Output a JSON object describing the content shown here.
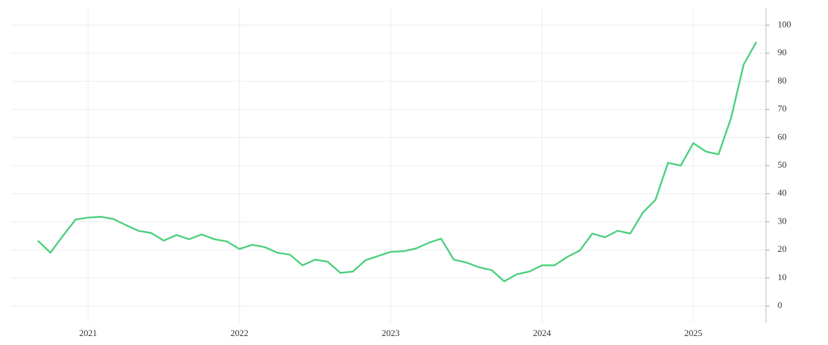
{
  "chart_data": {
    "type": "line",
    "x": [
      2020.667,
      2020.75,
      2020.833,
      2020.917,
      2021,
      2021.083,
      2021.167,
      2021.25,
      2021.333,
      2021.417,
      2021.5,
      2021.583,
      2021.667,
      2021.75,
      2021.833,
      2021.917,
      2022,
      2022.083,
      2022.167,
      2022.25,
      2022.333,
      2022.417,
      2022.5,
      2022.583,
      2022.667,
      2022.75,
      2022.833,
      2022.917,
      2023,
      2023.083,
      2023.167,
      2023.25,
      2023.333,
      2023.417,
      2023.5,
      2023.583,
      2023.667,
      2023.75,
      2023.833,
      2023.917,
      2024,
      2024.083,
      2024.167,
      2024.25,
      2024.333,
      2024.417,
      2024.5,
      2024.583,
      2024.667,
      2024.75,
      2024.833,
      2024.917,
      2025,
      2025.083,
      2025.167,
      2025.25,
      2025.333,
      2025.417
    ],
    "values": [
      23.3,
      19,
      25,
      30.8,
      31.5,
      31.8,
      31,
      28.8,
      26.8,
      26,
      23.3,
      25.3,
      23.8,
      25.5,
      23.8,
      23,
      20.3,
      21.8,
      21,
      19,
      18.3,
      14.5,
      16.5,
      15.8,
      11.8,
      12.3,
      16.3,
      17.8,
      19.3,
      19.5,
      20.5,
      22.5,
      24,
      16.5,
      15.5,
      13.8,
      12.8,
      8.8,
      11.3,
      12.3,
      14.5,
      14.5,
      17.5,
      19.8,
      25.8,
      24.5,
      26.8,
      25.8,
      33.3,
      37.8,
      51,
      50,
      58,
      55,
      54,
      67,
      86,
      94
    ],
    "color": "#4cd07d",
    "xlim": [
      2020.49,
      2025.48
    ],
    "xticks": [
      2021,
      2022,
      2023,
      2024,
      2025
    ],
    "ylim": [
      -6,
      106
    ],
    "yticks": [
      0,
      10,
      20,
      30,
      40,
      50,
      60,
      70,
      80,
      90,
      100
    ],
    "grid": true
  }
}
